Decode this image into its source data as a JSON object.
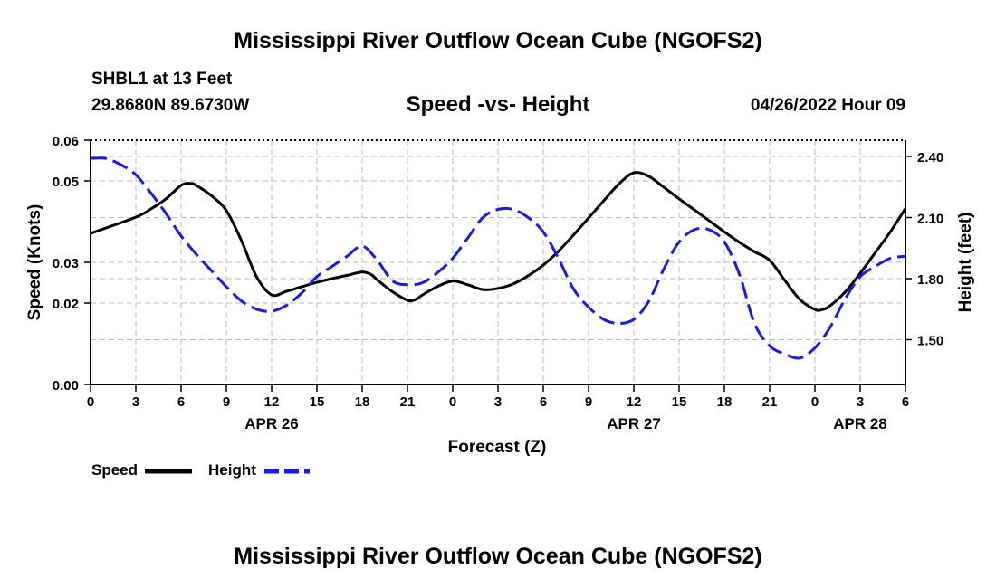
{
  "page": {
    "title": "Mississippi River Outflow Ocean Cube (NGOFS2)",
    "title_repeat": "Mississippi River Outflow Ocean Cube (NGOFS2)"
  },
  "chart_data": {
    "type": "line",
    "title": "Speed -vs- Height",
    "station": "SHBL1 at 13 Feet",
    "location": "29.8680N  89.6730W",
    "timestamp": "04/26/2022 Hour 09",
    "xlabel": "Forecast (Z)",
    "ylabel": "Speed (Knots)",
    "y2label": "Height (feet)",
    "x_hours_range": [
      0,
      54
    ],
    "ylim": [
      0.0,
      0.06
    ],
    "y2lim": [
      1.28,
      2.48
    ],
    "x_ticks": [
      {
        "h": 0,
        "label": "0"
      },
      {
        "h": 3,
        "label": "3"
      },
      {
        "h": 6,
        "label": "6"
      },
      {
        "h": 9,
        "label": "9"
      },
      {
        "h": 12,
        "label": "12"
      },
      {
        "h": 15,
        "label": "15"
      },
      {
        "h": 18,
        "label": "18"
      },
      {
        "h": 21,
        "label": "21"
      },
      {
        "h": 24,
        "label": "0"
      },
      {
        "h": 27,
        "label": "3"
      },
      {
        "h": 30,
        "label": "6"
      },
      {
        "h": 33,
        "label": "9"
      },
      {
        "h": 36,
        "label": "12"
      },
      {
        "h": 39,
        "label": "15"
      },
      {
        "h": 42,
        "label": "18"
      },
      {
        "h": 45,
        "label": "21"
      },
      {
        "h": 48,
        "label": "0"
      },
      {
        "h": 51,
        "label": "3"
      },
      {
        "h": 54,
        "label": "6"
      }
    ],
    "date_labels": [
      {
        "h": 12,
        "label": "APR 26"
      },
      {
        "h": 36,
        "label": "APR 27"
      },
      {
        "h": 51,
        "label": "APR 28"
      }
    ],
    "y_ticks": [
      {
        "v": 0.0,
        "label": "0.00"
      },
      {
        "v": 0.02,
        "label": "0.02"
      },
      {
        "v": 0.03,
        "label": "0.03"
      },
      {
        "v": 0.05,
        "label": "0.05"
      },
      {
        "v": 0.06,
        "label": "0.06"
      }
    ],
    "y2_ticks": [
      {
        "v": 1.5,
        "label": "1.50"
      },
      {
        "v": 1.8,
        "label": "1.80"
      },
      {
        "v": 2.1,
        "label": "2.10"
      },
      {
        "v": 2.4,
        "label": "2.40"
      }
    ],
    "series": [
      {
        "name": "Speed",
        "axis": "left",
        "color": "#000000",
        "style": "solid",
        "x": [
          0,
          3,
          4,
          5,
          6,
          6.6,
          7,
          8,
          9,
          10,
          11,
          12,
          13,
          14,
          15,
          16,
          17,
          18,
          18.6,
          19,
          20,
          21,
          21.5,
          22,
          23,
          24,
          25,
          26,
          27,
          28,
          29,
          30,
          31,
          32,
          33,
          34,
          35,
          36,
          37,
          38,
          39,
          40,
          41,
          42,
          43,
          44,
          45,
          46,
          47,
          48,
          48.5,
          49,
          50,
          51,
          52,
          53,
          54
        ],
        "values": [
          0.0371,
          0.0411,
          0.0431,
          0.0456,
          0.0489,
          0.0494,
          0.0489,
          0.0464,
          0.0427,
          0.0353,
          0.0265,
          0.022,
          0.0229,
          0.024,
          0.0251,
          0.026,
          0.0268,
          0.0276,
          0.027,
          0.0257,
          0.0228,
          0.0207,
          0.0208,
          0.022,
          0.0241,
          0.0254,
          0.0245,
          0.0233,
          0.0236,
          0.0247,
          0.0267,
          0.0293,
          0.0327,
          0.0367,
          0.0409,
          0.0451,
          0.0492,
          0.052,
          0.0511,
          0.0484,
          0.0456,
          0.0429,
          0.0402,
          0.0375,
          0.0349,
          0.0326,
          0.0305,
          0.0256,
          0.0209,
          0.0184,
          0.0184,
          0.0193,
          0.0227,
          0.0273,
          0.0324,
          0.0375,
          0.0432
        ]
      },
      {
        "name": "Height",
        "axis": "right",
        "color": "#1a1aee",
        "style": "dashed",
        "x": [
          0,
          1,
          2,
          3,
          4,
          5,
          6,
          7,
          8,
          9,
          10,
          11,
          12,
          13,
          14,
          15,
          16,
          17,
          18,
          19,
          20,
          21,
          22,
          23,
          24,
          25,
          26,
          27,
          28,
          29,
          30,
          31,
          32,
          33,
          34,
          35,
          36,
          37,
          38,
          39,
          40,
          41,
          42,
          43,
          44,
          45,
          46,
          47,
          48,
          49,
          50,
          51,
          52,
          53,
          54
        ],
        "values": [
          2.39,
          2.39,
          2.36,
          2.31,
          2.22,
          2.12,
          2.01,
          1.92,
          1.84,
          1.76,
          1.69,
          1.65,
          1.64,
          1.67,
          1.73,
          1.81,
          1.86,
          1.91,
          1.96,
          1.89,
          1.79,
          1.77,
          1.78,
          1.83,
          1.9,
          2.0,
          2.1,
          2.14,
          2.14,
          2.1,
          2.03,
          1.9,
          1.75,
          1.66,
          1.6,
          1.58,
          1.6,
          1.69,
          1.85,
          1.98,
          2.04,
          2.04,
          1.98,
          1.82,
          1.58,
          1.47,
          1.43,
          1.41,
          1.46,
          1.56,
          1.7,
          1.81,
          1.86,
          1.9,
          1.91
        ]
      }
    ],
    "legend": [
      {
        "label": "Speed",
        "color": "#000000",
        "style": "solid"
      },
      {
        "label": "Height",
        "color": "#1a1aee",
        "style": "dashed"
      }
    ]
  }
}
